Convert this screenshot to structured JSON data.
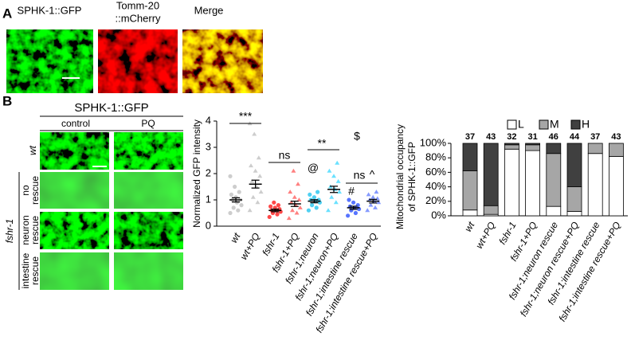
{
  "panel_labels": [
    "A",
    "B"
  ],
  "panel_a": {
    "labels": [
      "SPHK-1::GFP",
      [
        "Tomm-20",
        "::mCherry"
      ],
      "Merge"
    ]
  },
  "panel_b_images": {
    "title": "SPHK-1::GFP",
    "columns": [
      "control",
      "PQ"
    ],
    "group": "fshr-1",
    "rows": [
      [
        "wt"
      ],
      [
        "no",
        "rescue"
      ],
      [
        "neuron",
        "rescue"
      ],
      [
        "intestine",
        "rescue"
      ]
    ]
  },
  "chart_data": [
    {
      "type": "dotplot",
      "ylabel": "Normalized GFP intensity",
      "categories": [
        "wt",
        "wt+PQ",
        "fshr-1",
        "fshr-1+PQ",
        "fshr-1;neuron",
        "fshr-1;neuron+PQ",
        "fshr-1;intestine rescue",
        "fshr-1;intestine rescue+PQ"
      ],
      "colors": [
        "#c4c4c4",
        "#c4c4c4",
        "#ff2828",
        "#ff6a6a",
        "#30c8f0",
        "#50dcff",
        "#3a5cff",
        "#7088ff"
      ],
      "points": [
        [
          0.5,
          0.6,
          0.7,
          0.8,
          0.9,
          1.0,
          1.0,
          1.1,
          1.2,
          1.3,
          1.5,
          1.9
        ],
        [
          0.6,
          0.9,
          1.1,
          1.3,
          1.5,
          1.7,
          1.9,
          2.1,
          2.3,
          2.6,
          3.5,
          3.9
        ],
        [
          0.35,
          0.45,
          0.5,
          0.55,
          0.6,
          0.6,
          0.65,
          0.7,
          0.75,
          0.8,
          0.9
        ],
        [
          0.3,
          0.5,
          0.6,
          0.7,
          0.8,
          0.9,
          1.0,
          1.1,
          1.3,
          1.6,
          2.1
        ],
        [
          0.6,
          0.7,
          0.8,
          0.9,
          0.95,
          1.0,
          1.0,
          1.1,
          1.2,
          1.3
        ],
        [
          0.6,
          0.9,
          1.1,
          1.3,
          1.4,
          1.5,
          1.7,
          1.9,
          2.1,
          2.4
        ],
        [
          0.4,
          0.5,
          0.6,
          0.65,
          0.7,
          0.75,
          0.8,
          0.9,
          1.0
        ],
        [
          0.6,
          0.7,
          0.8,
          0.9,
          0.95,
          1.0,
          1.05,
          1.1,
          1.2,
          1.3
        ]
      ],
      "means": [
        1.0,
        1.6,
        0.6,
        0.85,
        0.95,
        1.4,
        0.7,
        0.95
      ],
      "errors": [
        0.08,
        0.15,
        0.05,
        0.1,
        0.06,
        0.12,
        0.06,
        0.07
      ],
      "ylim": [
        0,
        4
      ],
      "yticks": [
        0,
        1,
        2,
        3,
        4
      ],
      "annotations": [
        "***",
        "ns",
        "**",
        "$",
        "@",
        "#",
        "ns",
        "^"
      ]
    },
    {
      "type": "stacked_bar",
      "ylabel": [
        "Mitochondrial occupancy",
        "of SPHK-1::GFP"
      ],
      "categories": [
        "wt",
        "wt+PQ",
        "fshr-1",
        "fshr-1+PQ",
        "fshr-1;neuron rescue",
        "fshr-1;neuron rescue+PQ",
        "fshr-1;intestine rescue",
        "fshr-1;intestine rescue+PQ"
      ],
      "series": [
        {
          "name": "L",
          "color": "#ffffff",
          "values": [
            8,
            2,
            92,
            90,
            13,
            6,
            86,
            82
          ]
        },
        {
          "name": "M",
          "color": "#a6a6a6",
          "values": [
            54,
            12,
            6,
            8,
            73,
            34,
            14,
            18
          ]
        },
        {
          "name": "H",
          "color": "#404040",
          "values": [
            38,
            86,
            2,
            2,
            14,
            60,
            0,
            0
          ]
        }
      ],
      "counts": [
        37,
        43,
        32,
        31,
        46,
        44,
        37,
        43
      ],
      "ylim": [
        0,
        100
      ],
      "yticks": [
        {
          "value": 0,
          "label": "0%"
        },
        {
          "value": 20,
          "label": "20%"
        },
        {
          "value": 40,
          "label": "40%"
        },
        {
          "value": 60,
          "label": "60%"
        },
        {
          "value": 80,
          "label": "80%"
        },
        {
          "value": 100,
          "label": "100%"
        }
      ]
    }
  ]
}
